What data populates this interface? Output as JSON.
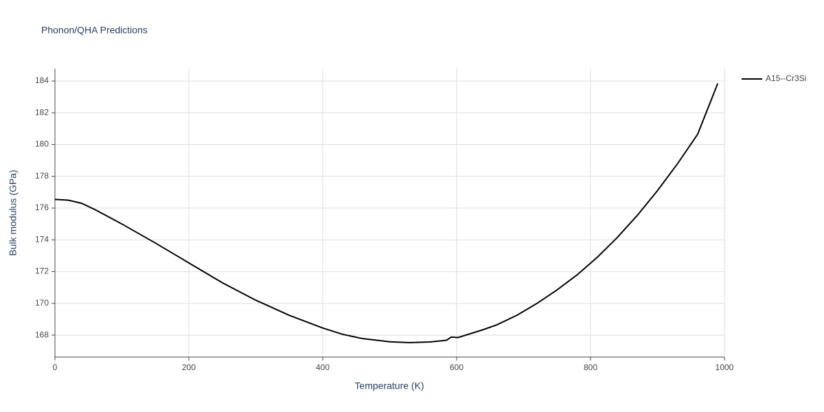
{
  "chart_data": {
    "type": "line",
    "title": "Phonon/QHA Predictions",
    "x_label": "Temperature (K)",
    "y_label": "Bulk modulus (GPa)",
    "x": [
      0,
      20,
      40,
      60,
      80,
      100,
      150,
      200,
      250,
      300,
      350,
      400,
      430,
      460,
      500,
      530,
      560,
      585,
      592,
      602,
      640,
      660,
      690,
      720,
      750,
      780,
      810,
      840,
      870,
      900,
      930,
      960,
      990
    ],
    "series": [
      {
        "name": "A15--Cr3Si",
        "color": "#000000",
        "values": [
          176.55,
          176.5,
          176.3,
          175.9,
          175.45,
          175.0,
          173.8,
          172.55,
          171.3,
          170.2,
          169.25,
          168.45,
          168.05,
          167.78,
          167.58,
          167.53,
          167.57,
          167.68,
          167.88,
          167.85,
          168.35,
          168.65,
          169.25,
          170.0,
          170.85,
          171.8,
          172.9,
          174.15,
          175.55,
          177.1,
          178.8,
          180.65,
          183.85
        ]
      }
    ],
    "xlim": [
      0,
      1000
    ],
    "xticks": [
      0,
      200,
      400,
      600,
      800,
      1000
    ],
    "ylim": [
      166.62,
      184.78
    ],
    "yticks": [
      168,
      170,
      172,
      174,
      176,
      178,
      180,
      182,
      184
    ],
    "grid": true,
    "legend": "right"
  }
}
